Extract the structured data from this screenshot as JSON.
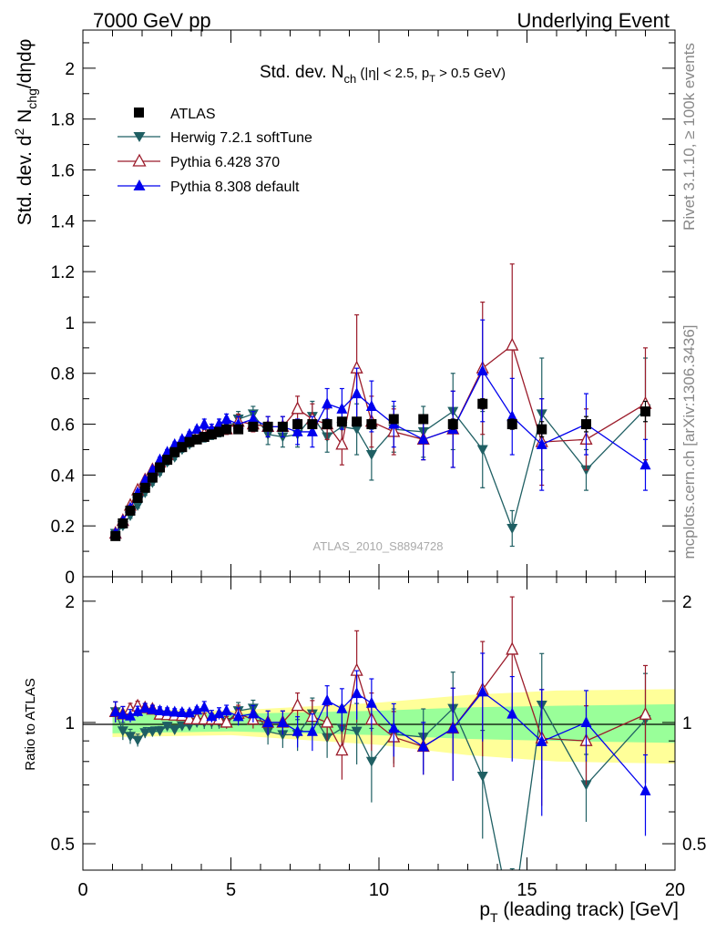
{
  "header": {
    "left": "7000 GeV pp",
    "right": "Underlying Event"
  },
  "side": {
    "rivet": "Rivet 3.1.10, ≥ 100k events",
    "mcplots": "mcplots.cern.ch [arXiv:1306.3436]"
  },
  "colors": {
    "atlas": "#000000",
    "herwig": "#1f5f63",
    "pythia6": "#9b1b2a",
    "pythia8": "#0000ee",
    "band_inner": "#99ff99",
    "band_outer": "#ffff99"
  },
  "chart_data": [
    {
      "type": "scatter",
      "title_parts": {
        "prefix": "Std. dev. N",
        "sub1": "ch",
        "mid": " (|η| < 2.5, p",
        "sub2": "T",
        "suffix": " > 0.5 GeV)"
      },
      "ylabel_parts": {
        "a": "Std. dev. d",
        "sup": "2",
        "b": " N",
        "sub": "chg",
        "c": "/dηdφ"
      },
      "watermark": "ATLAS_2010_S8894728",
      "xlim": [
        0,
        20
      ],
      "ylim": [
        0,
        2.15
      ],
      "yticks": [
        0,
        0.2,
        0.4,
        0.6,
        0.8,
        1,
        1.2,
        1.4,
        1.6,
        1.8,
        2
      ],
      "ytick_labels": [
        "0",
        "0.2",
        "0.4",
        "0.6",
        "0.8",
        "1",
        "1.2",
        "1.4",
        "1.6",
        "1.8",
        "2"
      ],
      "legend": [
        "ATLAS",
        "Herwig 7.2.1 softTune",
        "Pythia 6.428 370",
        "Pythia 8.308 default"
      ],
      "legend_position": "top-left",
      "x": [
        1.1,
        1.35,
        1.6,
        1.85,
        2.1,
        2.35,
        2.6,
        2.85,
        3.1,
        3.35,
        3.6,
        3.85,
        4.1,
        4.35,
        4.6,
        4.85,
        5.25,
        5.75,
        6.25,
        6.75,
        7.25,
        7.75,
        8.25,
        8.75,
        9.25,
        9.75,
        10.5,
        11.5,
        12.5,
        13.5,
        14.5,
        15.5,
        17.0,
        19.0
      ],
      "series": [
        {
          "name": "ATLAS",
          "values": [
            0.16,
            0.21,
            0.26,
            0.31,
            0.35,
            0.39,
            0.43,
            0.46,
            0.49,
            0.51,
            0.53,
            0.54,
            0.55,
            0.56,
            0.57,
            0.58,
            0.58,
            0.59,
            0.59,
            0.59,
            0.6,
            0.6,
            0.6,
            0.61,
            0.61,
            0.6,
            0.62,
            0.62,
            0.6,
            0.68,
            0.6,
            0.58,
            0.6,
            0.65
          ],
          "errors": [
            0.01,
            0.01,
            0.01,
            0.01,
            0.01,
            0.01,
            0.01,
            0.01,
            0.01,
            0.01,
            0.01,
            0.01,
            0.01,
            0.01,
            0.01,
            0.01,
            0.01,
            0.01,
            0.01,
            0.01,
            0.01,
            0.01,
            0.01,
            0.01,
            0.01,
            0.01,
            0.01,
            0.01,
            0.02,
            0.02,
            0.02,
            0.03,
            0.03,
            0.04
          ]
        },
        {
          "name": "Herwig 7.2.1 softTune",
          "values": [
            0.17,
            0.2,
            0.24,
            0.28,
            0.33,
            0.37,
            0.41,
            0.45,
            0.47,
            0.5,
            0.52,
            0.54,
            0.55,
            0.56,
            0.57,
            0.58,
            0.62,
            0.64,
            0.56,
            0.55,
            0.56,
            0.63,
            0.55,
            0.59,
            0.58,
            0.48,
            0.58,
            0.57,
            0.65,
            0.5,
            0.19,
            0.64,
            0.42,
            0.66
          ],
          "errors": [
            0.01,
            0.01,
            0.01,
            0.01,
            0.01,
            0.01,
            0.01,
            0.01,
            0.01,
            0.01,
            0.01,
            0.01,
            0.02,
            0.02,
            0.02,
            0.02,
            0.03,
            0.03,
            0.04,
            0.04,
            0.05,
            0.06,
            0.06,
            0.08,
            0.1,
            0.1,
            0.09,
            0.1,
            0.15,
            0.15,
            0.07,
            0.22,
            0.08,
            0.2
          ]
        },
        {
          "name": "Pythia 6.428 370",
          "values": [
            0.17,
            0.22,
            0.28,
            0.34,
            0.38,
            0.42,
            0.45,
            0.48,
            0.51,
            0.53,
            0.54,
            0.55,
            0.56,
            0.57,
            0.58,
            0.58,
            0.61,
            0.6,
            0.59,
            0.59,
            0.66,
            0.62,
            0.6,
            0.52,
            0.82,
            0.61,
            0.57,
            0.54,
            0.58,
            0.82,
            0.91,
            0.53,
            0.54,
            0.68
          ],
          "errors": [
            0.01,
            0.01,
            0.01,
            0.01,
            0.01,
            0.01,
            0.01,
            0.01,
            0.01,
            0.01,
            0.01,
            0.01,
            0.02,
            0.02,
            0.02,
            0.02,
            0.03,
            0.03,
            0.04,
            0.04,
            0.05,
            0.06,
            0.06,
            0.08,
            0.21,
            0.1,
            0.09,
            0.08,
            0.15,
            0.26,
            0.32,
            0.17,
            0.12,
            0.22
          ]
        },
        {
          "name": "Pythia 8.308 default",
          "values": [
            0.17,
            0.22,
            0.27,
            0.33,
            0.38,
            0.42,
            0.46,
            0.49,
            0.52,
            0.54,
            0.56,
            0.58,
            0.6,
            0.58,
            0.6,
            0.62,
            0.6,
            0.62,
            0.59,
            0.59,
            0.57,
            0.57,
            0.68,
            0.66,
            0.72,
            0.67,
            0.6,
            0.54,
            0.58,
            0.81,
            0.63,
            0.52,
            0.6,
            0.44
          ],
          "errors": [
            0.01,
            0.01,
            0.01,
            0.01,
            0.01,
            0.01,
            0.01,
            0.01,
            0.01,
            0.01,
            0.01,
            0.01,
            0.02,
            0.02,
            0.02,
            0.02,
            0.03,
            0.03,
            0.04,
            0.04,
            0.05,
            0.06,
            0.06,
            0.08,
            0.1,
            0.1,
            0.09,
            0.08,
            0.15,
            0.2,
            0.15,
            0.18,
            0.12,
            0.1
          ]
        }
      ]
    },
    {
      "type": "scatter",
      "ylabel": "Ratio to ATLAS",
      "ylim": [
        0.43,
        2.3
      ],
      "ytick_labels_left": [
        "0.5",
        "1",
        "2"
      ],
      "ytick_labels_right": [
        "0.5",
        "1",
        "2"
      ],
      "yticks": [
        0.5,
        1,
        2
      ],
      "xlim": [
        0,
        20
      ],
      "xticks": [
        0,
        5,
        10,
        15,
        20
      ],
      "xtick_labels": [
        "0",
        "5",
        "10",
        "15",
        "20"
      ],
      "xlabel_parts": {
        "a": "p",
        "sub": "T",
        "b": " (leading track) [GeV]"
      },
      "band_inner": [
        [
          1.0,
          0.06
        ],
        [
          5.0,
          0.05
        ],
        [
          10.0,
          0.07
        ],
        [
          13.0,
          0.09
        ],
        [
          16.0,
          0.1
        ],
        [
          20.0,
          0.11
        ]
      ],
      "band_outer": [
        [
          1.0,
          0.08
        ],
        [
          5.0,
          0.07
        ],
        [
          10.0,
          0.12
        ],
        [
          13.0,
          0.17
        ],
        [
          16.0,
          0.2
        ],
        [
          20.0,
          0.21
        ]
      ]
    }
  ]
}
